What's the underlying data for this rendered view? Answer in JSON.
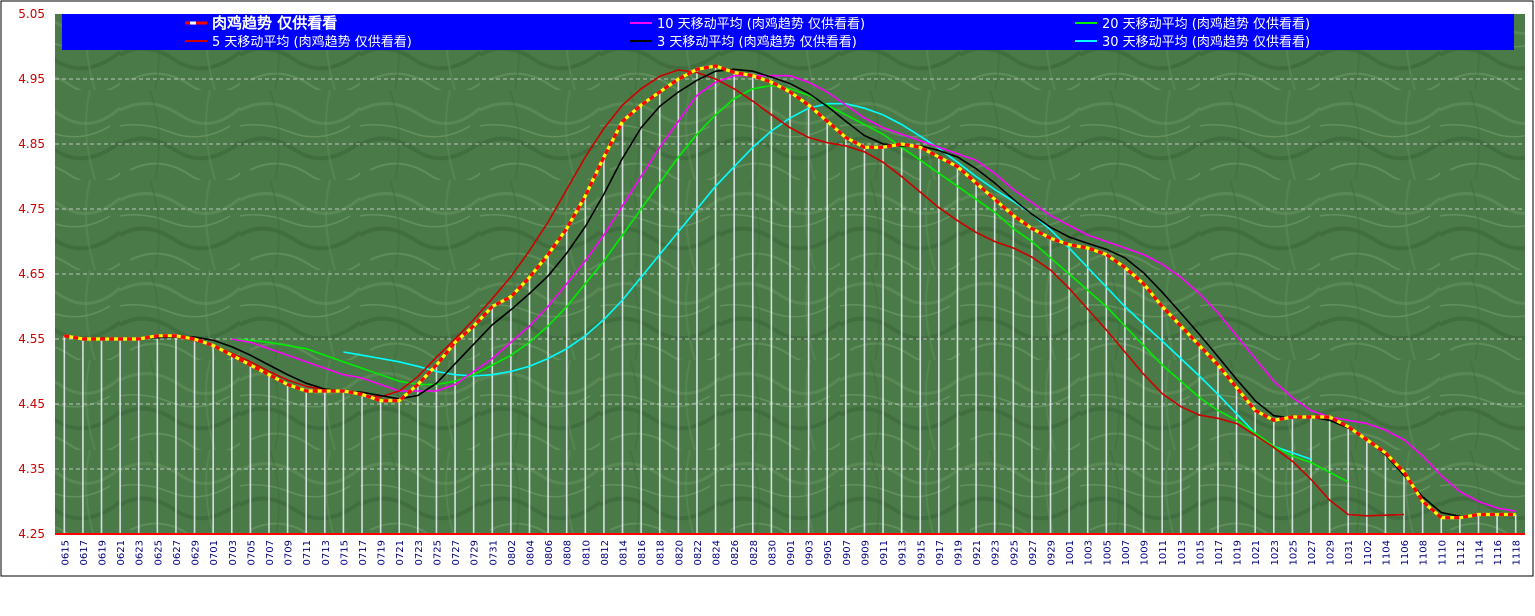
{
  "chart_data": {
    "type": "line",
    "title": "",
    "xlabel": "",
    "ylabel": "",
    "ylim": [
      4.25,
      5.05
    ],
    "y_ticks": [
      "4.25",
      "4.35",
      "4.45",
      "4.55",
      "4.65",
      "4.75",
      "4.85",
      "4.95",
      "5.05"
    ],
    "grid": true,
    "legend_position": "top",
    "colors": {
      "plot_background": "#4a7a48",
      "legend_background": "#0000ff",
      "legend_text": "#ffffff",
      "axis_label_text": "#cc0000",
      "x_label_text": "#000080",
      "daily_bar": "#e6ecf2",
      "grid_line": "#d9d9d9"
    },
    "x_labels": [
      "0615",
      "0617",
      "0619",
      "0621",
      "0623",
      "0625",
      "0627",
      "0629",
      "0701",
      "0703",
      "0705",
      "0707",
      "0709",
      "0711",
      "0713",
      "0715",
      "0717",
      "0719",
      "0721",
      "0723",
      "0725",
      "0727",
      "0729",
      "0731",
      "0802",
      "0804",
      "0806",
      "0808",
      "0810",
      "0812",
      "0814",
      "0816",
      "0818",
      "0820",
      "0822",
      "0824",
      "0826",
      "0828",
      "0830",
      "0901",
      "0903",
      "0905",
      "0907",
      "0909",
      "0911",
      "0913",
      "0915",
      "0917",
      "0919",
      "0921",
      "0923",
      "0925",
      "0927",
      "0929",
      "1001",
      "1003",
      "1005",
      "1007",
      "1009",
      "1011",
      "1013",
      "1015",
      "1017",
      "1019",
      "1021",
      "1023",
      "1025",
      "1027",
      "1029",
      "1031",
      "1102",
      "1104",
      "1106",
      "1108",
      "1110",
      "1112",
      "1114",
      "1116",
      "1118"
    ],
    "series": [
      {
        "name": "肉鸡趋势 仅供看看",
        "color": "#ff0000",
        "accent": "#ffff00",
        "style": "dashed",
        "legend_bold": true,
        "start_index": 0,
        "values": [
          4.555,
          4.55,
          4.55,
          4.55,
          4.55,
          4.555,
          4.555,
          4.55,
          4.54,
          4.525,
          4.51,
          4.495,
          4.48,
          4.47,
          4.47,
          4.47,
          4.465,
          4.455,
          4.455,
          4.48,
          4.51,
          4.545,
          4.57,
          4.6,
          4.615,
          4.645,
          4.68,
          4.72,
          4.77,
          4.83,
          4.885,
          4.91,
          4.93,
          4.95,
          4.965,
          4.97,
          4.96,
          4.955,
          4.945,
          4.93,
          4.91,
          4.885,
          4.86,
          4.845,
          4.845,
          4.85,
          4.845,
          4.83,
          4.815,
          4.79,
          4.765,
          4.74,
          4.72,
          4.705,
          4.695,
          4.69,
          4.68,
          4.66,
          4.635,
          4.6,
          4.57,
          4.54,
          4.51,
          4.475,
          4.44,
          4.425,
          4.43,
          4.43,
          4.43,
          4.415,
          4.395,
          4.375,
          4.345,
          4.3,
          4.275,
          4.275,
          4.28,
          4.28,
          4.28
        ]
      },
      {
        "name": "10 天移动平均 (肉鸡趋势 仅供看看)",
        "color": "#ff00ff",
        "style": "solid",
        "start_index": 9,
        "values": [
          4.55,
          4.545,
          4.535,
          4.525,
          4.515,
          4.505,
          4.495,
          4.49,
          4.48,
          4.47,
          4.47,
          4.47,
          4.48,
          4.5,
          4.52,
          4.545,
          4.57,
          4.6,
          4.635,
          4.67,
          4.71,
          4.755,
          4.8,
          4.845,
          4.885,
          4.925,
          4.945,
          4.955,
          4.955,
          4.955,
          4.955,
          4.945,
          4.93,
          4.91,
          4.89,
          4.875,
          4.865,
          4.855,
          4.845,
          4.835,
          4.825,
          4.805,
          4.78,
          4.76,
          4.74,
          4.725,
          4.71,
          4.7,
          4.69,
          4.68,
          4.665,
          4.645,
          4.62,
          4.59,
          4.555,
          4.52,
          4.485,
          4.46,
          4.44,
          4.43,
          4.425,
          4.42,
          4.41,
          4.395,
          4.37,
          4.34,
          4.315,
          4.3,
          4.29,
          4.285
        ]
      },
      {
        "name": "20 天移动平均 (肉鸡趋势 仅供看看)",
        "color": "#00ee00",
        "style": "solid",
        "start_index": 9,
        "values": [
          4.55,
          4.548,
          4.545,
          4.54,
          4.535,
          4.525,
          4.515,
          4.505,
          4.495,
          4.485,
          4.48,
          4.48,
          4.485,
          4.495,
          4.51,
          4.525,
          4.545,
          4.57,
          4.6,
          4.635,
          4.67,
          4.71,
          4.75,
          4.79,
          4.83,
          4.865,
          4.895,
          4.92,
          4.935,
          4.94,
          4.935,
          4.925,
          4.91,
          4.895,
          4.88,
          4.865,
          4.845,
          4.825,
          4.805,
          4.785,
          4.765,
          4.745,
          4.72,
          4.7,
          4.675,
          4.65,
          4.625,
          4.6,
          4.57,
          4.54,
          4.51,
          4.485,
          4.46,
          4.44,
          4.425,
          4.405,
          4.385,
          4.37,
          4.36,
          4.345,
          4.33
        ]
      },
      {
        "name": "5 天移动平均 (肉鸡趋势 仅供看看)",
        "color": "#cc0000",
        "style": "solid",
        "start_index": 4,
        "values": [
          4.55,
          4.553,
          4.553,
          4.548,
          4.54,
          4.528,
          4.515,
          4.5,
          4.487,
          4.477,
          4.472,
          4.469,
          4.463,
          4.461,
          4.47,
          4.492,
          4.522,
          4.55,
          4.58,
          4.612,
          4.646,
          4.686,
          4.73,
          4.78,
          4.83,
          4.874,
          4.91,
          4.935,
          4.954,
          4.964,
          4.96,
          4.95,
          4.935,
          4.916,
          4.895,
          4.875,
          4.86,
          4.852,
          4.847,
          4.838,
          4.822,
          4.8,
          4.776,
          4.752,
          4.732,
          4.714,
          4.7,
          4.69,
          4.676,
          4.656,
          4.628,
          4.596,
          4.564,
          4.53,
          4.496,
          4.466,
          4.446,
          4.433,
          4.428,
          4.42,
          4.402,
          4.383,
          4.362,
          4.334,
          4.302,
          4.28,
          4.278,
          4.279,
          4.28
        ]
      },
      {
        "name": "3 天移动平均 (肉鸡趋势 仅供看看)",
        "color": "#000000",
        "style": "solid",
        "start_index": 2,
        "values": [
          4.552,
          4.55,
          4.55,
          4.552,
          4.553,
          4.553,
          4.548,
          4.538,
          4.525,
          4.51,
          4.495,
          4.482,
          4.473,
          4.47,
          4.468,
          4.463,
          4.458,
          4.463,
          4.482,
          4.512,
          4.542,
          4.572,
          4.595,
          4.62,
          4.647,
          4.682,
          4.723,
          4.773,
          4.828,
          4.875,
          4.908,
          4.93,
          4.948,
          4.962,
          4.965,
          4.962,
          4.953,
          4.943,
          4.928,
          4.908,
          4.885,
          4.863,
          4.85,
          4.847,
          4.847,
          4.84,
          4.83,
          4.812,
          4.79,
          4.765,
          4.742,
          4.722,
          4.707,
          4.697,
          4.688,
          4.675,
          4.652,
          4.622,
          4.59,
          4.557,
          4.523,
          4.488,
          4.455,
          4.432,
          4.428,
          4.43,
          4.425,
          4.413,
          4.395,
          4.372,
          4.34,
          4.307,
          4.283,
          4.277,
          4.28,
          4.28
        ]
      },
      {
        "name": "30 天移动平均 (肉鸡趋势 仅供看看)",
        "color": "#00ffff",
        "style": "solid",
        "start_index": 15,
        "values": [
          4.53,
          4.525,
          4.52,
          4.515,
          4.508,
          4.5,
          4.495,
          4.493,
          4.495,
          4.5,
          4.508,
          4.52,
          4.535,
          4.555,
          4.58,
          4.61,
          4.645,
          4.68,
          4.715,
          4.75,
          4.785,
          4.815,
          4.845,
          4.87,
          4.89,
          4.905,
          4.912,
          4.912,
          4.905,
          4.895,
          4.88,
          4.862,
          4.843,
          4.822,
          4.8,
          4.78,
          4.762,
          4.742,
          4.718,
          4.69,
          4.66,
          4.63,
          4.6,
          4.573,
          4.547,
          4.52,
          4.493,
          4.465,
          4.435,
          4.405,
          4.385,
          4.375,
          4.365
        ]
      }
    ]
  }
}
